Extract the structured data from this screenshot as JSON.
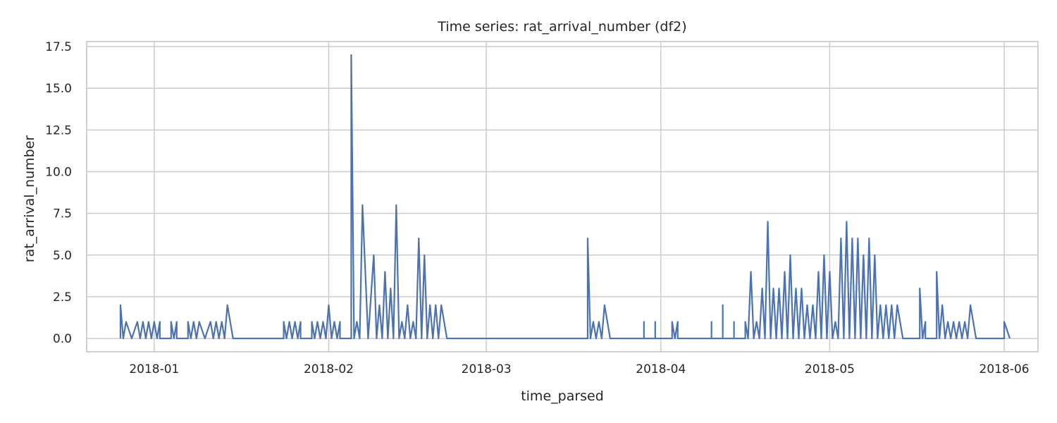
{
  "chart_data": {
    "type": "line",
    "title": "Time series: rat_arrival_number (df2)",
    "xlabel": "time_parsed",
    "ylabel": "rat_arrival_number",
    "xlim": [
      "2017-12-20",
      "2018-06-07"
    ],
    "ylim": [
      -0.8,
      17.8
    ],
    "x_ticks": [
      "2018-01",
      "2018-02",
      "2018-03",
      "2018-04",
      "2018-05",
      "2018-06"
    ],
    "y_ticks": [
      0.0,
      2.5,
      5.0,
      7.5,
      10.0,
      12.5,
      15.0,
      17.5
    ],
    "grid": true,
    "color": "#4c72b0",
    "series": [
      {
        "points": [
          [
            "2017-12-26",
            0
          ],
          [
            "2017-12-26",
            2
          ],
          [
            "2017-12-27",
            1
          ],
          [
            "2017-12-28",
            0
          ],
          [
            "2017-12-29",
            1
          ],
          [
            "2017-12-30",
            1
          ],
          [
            "2017-12-31",
            1
          ],
          [
            "2018-01-01",
            1
          ],
          [
            "2018-01-02",
            1
          ],
          [
            "2018-01-04",
            1
          ],
          [
            "2018-01-05",
            1
          ],
          [
            "2018-01-07",
            1
          ],
          [
            "2018-01-08",
            1
          ],
          [
            "2018-01-09",
            1
          ],
          [
            "2018-01-10",
            0
          ],
          [
            "2018-01-11",
            1
          ],
          [
            "2018-01-12",
            1
          ],
          [
            "2018-01-13",
            1
          ],
          [
            "2018-01-14",
            2
          ],
          [
            "2018-01-15",
            0
          ],
          [
            "2018-01-24",
            1
          ],
          [
            "2018-01-25",
            1
          ],
          [
            "2018-01-26",
            1
          ],
          [
            "2018-01-27",
            1
          ],
          [
            "2018-01-29",
            1
          ],
          [
            "2018-01-30",
            1
          ],
          [
            "2018-01-31",
            1
          ],
          [
            "2018-02-01",
            2
          ],
          [
            "2018-02-02",
            1
          ],
          [
            "2018-02-03",
            1
          ],
          [
            "2018-02-05",
            17
          ],
          [
            "2018-02-06",
            1
          ],
          [
            "2018-02-07",
            8
          ],
          [
            "2018-02-08",
            0
          ],
          [
            "2018-02-09",
            5
          ],
          [
            "2018-02-10",
            2
          ],
          [
            "2018-02-11",
            4
          ],
          [
            "2018-02-12",
            3
          ],
          [
            "2018-02-13",
            8
          ],
          [
            "2018-02-14",
            1
          ],
          [
            "2018-02-15",
            2
          ],
          [
            "2018-02-16",
            1
          ],
          [
            "2018-02-17",
            6
          ],
          [
            "2018-02-18",
            5
          ],
          [
            "2018-02-19",
            2
          ],
          [
            "2018-02-20",
            2
          ],
          [
            "2018-02-21",
            2
          ],
          [
            "2018-02-22",
            0
          ],
          [
            "2018-03-19",
            0
          ],
          [
            "2018-03-19",
            6
          ],
          [
            "2018-03-20",
            1
          ],
          [
            "2018-03-21",
            1
          ],
          [
            "2018-03-22",
            2
          ],
          [
            "2018-03-23",
            0
          ],
          [
            "2018-03-29",
            1
          ],
          [
            "2018-03-31",
            1
          ],
          [
            "2018-04-03",
            1
          ],
          [
            "2018-04-04",
            1
          ],
          [
            "2018-04-10",
            1
          ],
          [
            "2018-04-12",
            2
          ],
          [
            "2018-04-14",
            1
          ],
          [
            "2018-04-16",
            1
          ],
          [
            "2018-04-17",
            4
          ],
          [
            "2018-04-18",
            1
          ],
          [
            "2018-04-19",
            3
          ],
          [
            "2018-04-20",
            7
          ],
          [
            "2018-04-21",
            3
          ],
          [
            "2018-04-22",
            3
          ],
          [
            "2018-04-23",
            4
          ],
          [
            "2018-04-24",
            5
          ],
          [
            "2018-04-25",
            3
          ],
          [
            "2018-04-26",
            3
          ],
          [
            "2018-04-27",
            2
          ],
          [
            "2018-04-28",
            2
          ],
          [
            "2018-04-29",
            4
          ],
          [
            "2018-04-30",
            5
          ],
          [
            "2018-05-01",
            4
          ],
          [
            "2018-05-02",
            1
          ],
          [
            "2018-05-03",
            6
          ],
          [
            "2018-05-04",
            7
          ],
          [
            "2018-05-05",
            6
          ],
          [
            "2018-05-06",
            6
          ],
          [
            "2018-05-07",
            5
          ],
          [
            "2018-05-08",
            6
          ],
          [
            "2018-05-09",
            5
          ],
          [
            "2018-05-10",
            2
          ],
          [
            "2018-05-11",
            2
          ],
          [
            "2018-05-12",
            2
          ],
          [
            "2018-05-13",
            2
          ],
          [
            "2018-05-14",
            0
          ],
          [
            "2018-05-17",
            3
          ],
          [
            "2018-05-18",
            1
          ],
          [
            "2018-05-20",
            4
          ],
          [
            "2018-05-21",
            2
          ],
          [
            "2018-05-22",
            1
          ],
          [
            "2018-05-23",
            1
          ],
          [
            "2018-05-24",
            1
          ],
          [
            "2018-05-25",
            1
          ],
          [
            "2018-05-26",
            2
          ],
          [
            "2018-05-27",
            0
          ],
          [
            "2018-06-01",
            0
          ],
          [
            "2018-06-01",
            1
          ],
          [
            "2018-06-02",
            0
          ]
        ]
      }
    ]
  }
}
